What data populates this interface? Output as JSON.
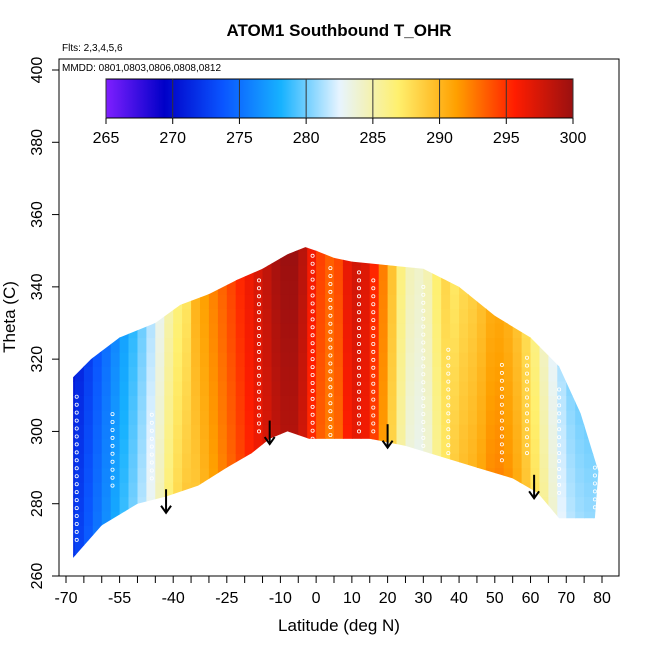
{
  "chart_data": {
    "type": "heatmap",
    "title": "ATOM1 Southbound T_OHR",
    "flights_note": "Flts: 2,3,4,5,6",
    "dates_note": "MMDD: 0801,0803,0806,0808,0812",
    "xlabel": "Latitude (deg N)",
    "ylabel": "Theta (C)",
    "xlim": [
      -70,
      80
    ],
    "ylim": [
      260,
      400
    ],
    "x_ticks": [
      -70,
      -55,
      -40,
      -25,
      -10,
      0,
      10,
      20,
      30,
      40,
      50,
      60,
      70,
      80
    ],
    "y_ticks": [
      260,
      280,
      300,
      320,
      340,
      360,
      380,
      400
    ],
    "colorbar": {
      "min": 265,
      "max": 300,
      "ticks": [
        265,
        270,
        275,
        280,
        285,
        290,
        295,
        300
      ],
      "colors": [
        "#7f1fff",
        "#0000c8",
        "#0a55ff",
        "#17b2ff",
        "#e7f4ff",
        "#fff06e",
        "#ffa000",
        "#ff1d00",
        "#9a1010"
      ]
    },
    "surface_boundary": [
      {
        "lat": -68,
        "theta": 265
      },
      {
        "lat": -60,
        "theta": 274
      },
      {
        "lat": -50,
        "theta": 280
      },
      {
        "lat": -42,
        "theta": 282
      },
      {
        "lat": -33,
        "theta": 285
      },
      {
        "lat": -25,
        "theta": 290
      },
      {
        "lat": -18,
        "theta": 294
      },
      {
        "lat": -13,
        "theta": 298
      },
      {
        "lat": -8,
        "theta": 300
      },
      {
        "lat": -2,
        "theta": 298
      },
      {
        "lat": 5,
        "theta": 298
      },
      {
        "lat": 15,
        "theta": 298
      },
      {
        "lat": 25,
        "theta": 296
      },
      {
        "lat": 35,
        "theta": 293
      },
      {
        "lat": 45,
        "theta": 290
      },
      {
        "lat": 55,
        "theta": 287
      },
      {
        "lat": 62,
        "theta": 283
      },
      {
        "lat": 68,
        "theta": 276
      },
      {
        "lat": 78,
        "theta": 276
      }
    ],
    "top_boundary": [
      {
        "lat": -68,
        "theta": 315
      },
      {
        "lat": -63,
        "theta": 320
      },
      {
        "lat": -55,
        "theta": 326
      },
      {
        "lat": -45,
        "theta": 330
      },
      {
        "lat": -38,
        "theta": 335
      },
      {
        "lat": -30,
        "theta": 338
      },
      {
        "lat": -22,
        "theta": 342
      },
      {
        "lat": -15,
        "theta": 345
      },
      {
        "lat": -8,
        "theta": 349
      },
      {
        "lat": -3,
        "theta": 351
      },
      {
        "lat": 0,
        "theta": 350
      },
      {
        "lat": 5,
        "theta": 348
      },
      {
        "lat": 10,
        "theta": 347
      },
      {
        "lat": 20,
        "theta": 346
      },
      {
        "lat": 30,
        "theta": 345
      },
      {
        "lat": 40,
        "theta": 340
      },
      {
        "lat": 50,
        "theta": 332
      },
      {
        "lat": 60,
        "theta": 326
      },
      {
        "lat": 68,
        "theta": 318
      },
      {
        "lat": 74,
        "theta": 305
      },
      {
        "lat": 79,
        "theta": 289
      }
    ],
    "temperature_by_latitude": [
      {
        "lat": -68,
        "t": 271
      },
      {
        "lat": -62,
        "t": 274
      },
      {
        "lat": -56,
        "t": 277
      },
      {
        "lat": -50,
        "t": 280
      },
      {
        "lat": -45,
        "t": 283
      },
      {
        "lat": -40,
        "t": 287
      },
      {
        "lat": -35,
        "t": 289
      },
      {
        "lat": -30,
        "t": 291
      },
      {
        "lat": -25,
        "t": 293
      },
      {
        "lat": -20,
        "t": 295
      },
      {
        "lat": -15,
        "t": 297
      },
      {
        "lat": -10,
        "t": 299
      },
      {
        "lat": -5,
        "t": 299
      },
      {
        "lat": 0,
        "t": 294
      },
      {
        "lat": 5,
        "t": 292
      },
      {
        "lat": 10,
        "t": 297
      },
      {
        "lat": 15,
        "t": 296
      },
      {
        "lat": 20,
        "t": 290
      },
      {
        "lat": 25,
        "t": 284
      },
      {
        "lat": 30,
        "t": 283
      },
      {
        "lat": 35,
        "t": 287
      },
      {
        "lat": 40,
        "t": 289
      },
      {
        "lat": 45,
        "t": 290
      },
      {
        "lat": 50,
        "t": 292
      },
      {
        "lat": 55,
        "t": 291
      },
      {
        "lat": 60,
        "t": 288
      },
      {
        "lat": 65,
        "t": 284
      },
      {
        "lat": 70,
        "t": 281
      },
      {
        "lat": 75,
        "t": 280
      },
      {
        "lat": 80,
        "t": 280
      }
    ],
    "arrows": [
      {
        "lat": -42,
        "theta": 284
      },
      {
        "lat": -13,
        "theta": 303
      },
      {
        "lat": 20,
        "theta": 302
      },
      {
        "lat": 61,
        "theta": 288
      }
    ],
    "sample_columns": [
      {
        "lat": -67,
        "theta_min": 270,
        "theta_max": 310
      },
      {
        "lat": -57,
        "theta_min": 285,
        "theta_max": 305
      },
      {
        "lat": -46,
        "theta_min": 287,
        "theta_max": 306
      },
      {
        "lat": -16,
        "theta_min": 300,
        "theta_max": 343
      },
      {
        "lat": -1,
        "theta_min": 298,
        "theta_max": 349
      },
      {
        "lat": 4,
        "theta_min": 299,
        "theta_max": 346
      },
      {
        "lat": 12,
        "theta_min": 300,
        "theta_max": 344
      },
      {
        "lat": 16,
        "theta_min": 300,
        "theta_max": 343
      },
      {
        "lat": 30,
        "theta_min": 296,
        "theta_max": 340
      },
      {
        "lat": 37,
        "theta_min": 294,
        "theta_max": 324
      },
      {
        "lat": 52,
        "theta_min": 292,
        "theta_max": 320
      },
      {
        "lat": 59,
        "theta_min": 294,
        "theta_max": 322
      },
      {
        "lat": 68,
        "theta_min": 283,
        "theta_max": 312
      },
      {
        "lat": 78,
        "theta_min": 279,
        "theta_max": 292
      }
    ]
  }
}
